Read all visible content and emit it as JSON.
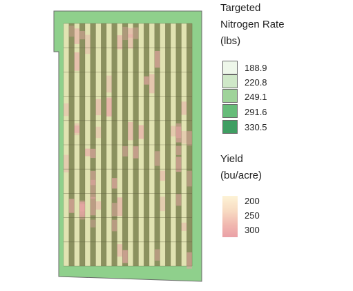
{
  "nitrogen_legend": {
    "title_lines": [
      "Targeted",
      "Nitrogen Rate",
      "(lbs)"
    ],
    "items": [
      {
        "label": "188.9",
        "color": "#eef7ea"
      },
      {
        "label": "220.8",
        "color": "#cfe8c8"
      },
      {
        "label": "249.1",
        "color": "#9fd39a"
      },
      {
        "label": "291.6",
        "color": "#66bc79"
      },
      {
        "label": "330.5",
        "color": "#3f9e62"
      }
    ]
  },
  "yield_legend": {
    "title_lines": [
      "Yield",
      "(bu/acre)"
    ],
    "labels": [
      "200",
      "250",
      "300"
    ],
    "colors": {
      "low": "#fdf3d6",
      "mid": "#f6d2c0",
      "high": "#eaa0a6"
    }
  },
  "map_colors": {
    "field_boundary": "#8fd08c",
    "strip_light": "#e6e4b4",
    "strip_dark": "#8b8a5a",
    "yield_pink": "#e9a7a7"
  },
  "grid": {
    "strip_count": 24,
    "block_rows": 10
  }
}
